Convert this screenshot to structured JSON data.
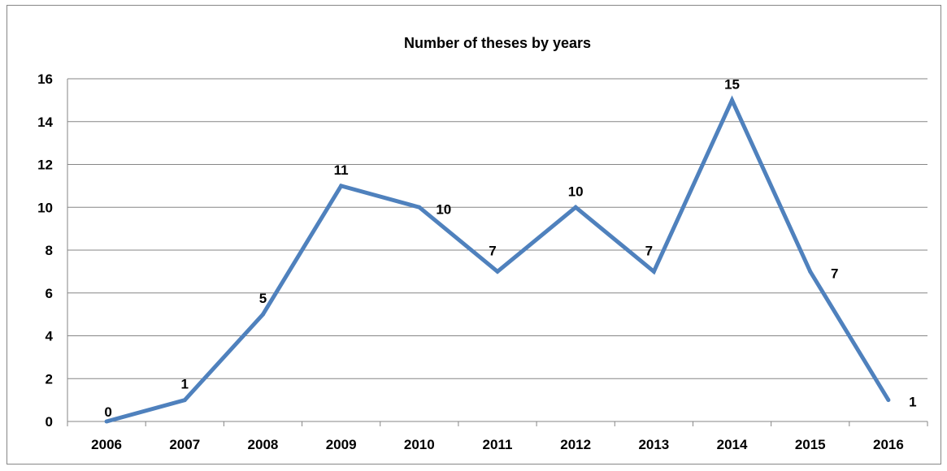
{
  "chart_data": {
    "type": "line",
    "title": "Number of theses by years",
    "xlabel": "",
    "ylabel": "",
    "categories": [
      "2006",
      "2007",
      "2008",
      "2009",
      "2010",
      "2011",
      "2012",
      "2013",
      "2014",
      "2015",
      "2016"
    ],
    "series": [
      {
        "values": [
          0,
          1,
          5,
          11,
          10,
          7,
          10,
          7,
          15,
          7,
          1
        ],
        "color": "#4F81BD"
      }
    ],
    "ylim": [
      0,
      16
    ],
    "yticks": [
      0,
      2,
      4,
      6,
      8,
      10,
      12,
      14,
      16
    ],
    "grid": true,
    "legend": "none",
    "data_labels": true
  }
}
